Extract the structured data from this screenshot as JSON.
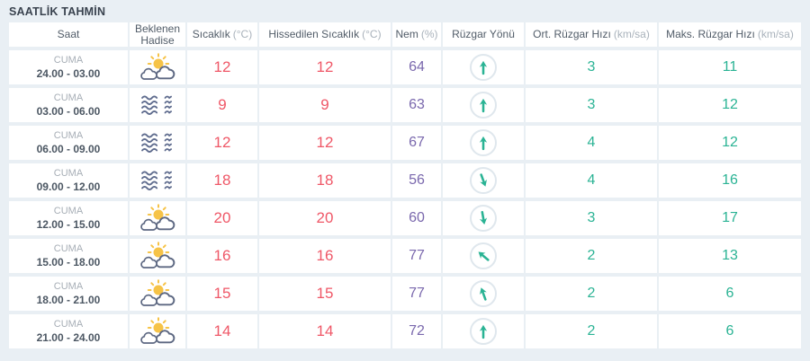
{
  "title": "SAATLİK TAHMİN",
  "colors": {
    "temp": "#ef5767",
    "hum": "#7a68ad",
    "wind": "#2ab394",
    "sun": "#f6c347",
    "fog-line": "#5f6c8e",
    "icon-line": "#5d6882",
    "bg": "#e9eff4"
  },
  "table": {
    "columns": [
      {
        "label": "Saat",
        "unit": ""
      },
      {
        "label": "Beklenen Hadise",
        "unit": ""
      },
      {
        "label": "Sıcaklık",
        "unit": "(°C)"
      },
      {
        "label": "Hissedilen Sıcaklık",
        "unit": "(°C)"
      },
      {
        "label": "Nem",
        "unit": "(%)"
      },
      {
        "label": "Rüzgar Yönü",
        "unit": ""
      },
      {
        "label": "Ort. Rüzgar Hızı",
        "unit": "(km/sa)"
      },
      {
        "label": "Maks. Rüzgar Hızı",
        "unit": "(km/sa)"
      }
    ],
    "rows": [
      {
        "day": "CUMA",
        "time": "24.00 - 03.00",
        "icon": "partly-sunny",
        "temp": "12",
        "feels": "12",
        "humidity": "64",
        "wind_deg": 0,
        "avg_wind": "3",
        "max_wind": "11"
      },
      {
        "day": "CUMA",
        "time": "03.00 - 06.00",
        "icon": "fog",
        "temp": "9",
        "feels": "9",
        "humidity": "63",
        "wind_deg": 0,
        "avg_wind": "3",
        "max_wind": "12"
      },
      {
        "day": "CUMA",
        "time": "06.00 - 09.00",
        "icon": "fog",
        "temp": "12",
        "feels": "12",
        "humidity": "67",
        "wind_deg": 0,
        "avg_wind": "4",
        "max_wind": "12"
      },
      {
        "day": "CUMA",
        "time": "09.00 - 12.00",
        "icon": "fog",
        "temp": "18",
        "feels": "18",
        "humidity": "56",
        "wind_deg": 160,
        "avg_wind": "4",
        "max_wind": "16"
      },
      {
        "day": "CUMA",
        "time": "12.00 - 15.00",
        "icon": "partly-sunny",
        "temp": "20",
        "feels": "20",
        "humidity": "60",
        "wind_deg": 170,
        "avg_wind": "3",
        "max_wind": "17"
      },
      {
        "day": "CUMA",
        "time": "15.00 - 18.00",
        "icon": "partly-sunny",
        "temp": "16",
        "feels": "16",
        "humidity": "77",
        "wind_deg": -50,
        "avg_wind": "2",
        "max_wind": "13"
      },
      {
        "day": "CUMA",
        "time": "18.00 - 21.00",
        "icon": "partly-sunny",
        "temp": "15",
        "feels": "15",
        "humidity": "77",
        "wind_deg": -20,
        "avg_wind": "2",
        "max_wind": "6"
      },
      {
        "day": "CUMA",
        "time": "21.00 - 24.00",
        "icon": "partly-sunny",
        "temp": "14",
        "feels": "14",
        "humidity": "72",
        "wind_deg": 0,
        "avg_wind": "2",
        "max_wind": "6"
      }
    ]
  }
}
